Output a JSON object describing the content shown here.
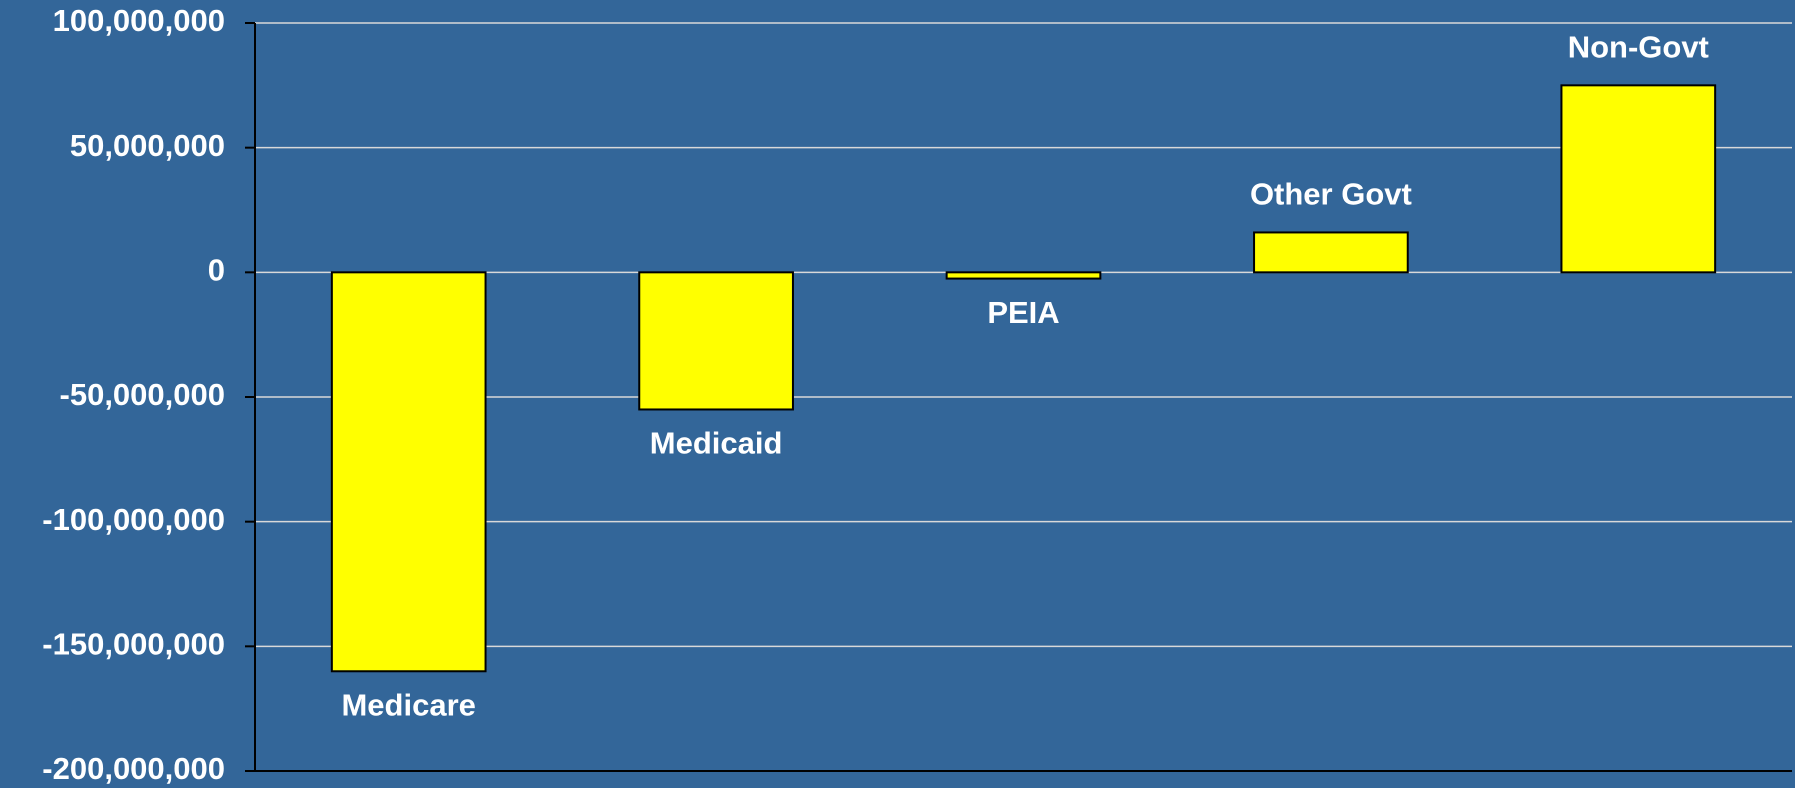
{
  "chart_data": {
    "type": "bar",
    "categories": [
      "Medicare",
      "Medicaid",
      "PEIA",
      "Other Govt",
      "Non-Govt"
    ],
    "values": [
      -160000000,
      -55000000,
      -2500000,
      16000000,
      75000000
    ],
    "color": "#ffff00",
    "ylim": [
      -200000000,
      100000000
    ],
    "yticks": [
      {
        "value": -200000000,
        "label": "-200,000,000"
      },
      {
        "value": -150000000,
        "label": "-150,000,000"
      },
      {
        "value": -100000000,
        "label": "-100,000,000"
      },
      {
        "value": -50000000,
        "label": "-50,000,000"
      },
      0,
      {
        "value": 50000000,
        "label": "50,000,000"
      },
      {
        "value": 100000000,
        "label": "100,000,000"
      }
    ],
    "grid": true
  }
}
